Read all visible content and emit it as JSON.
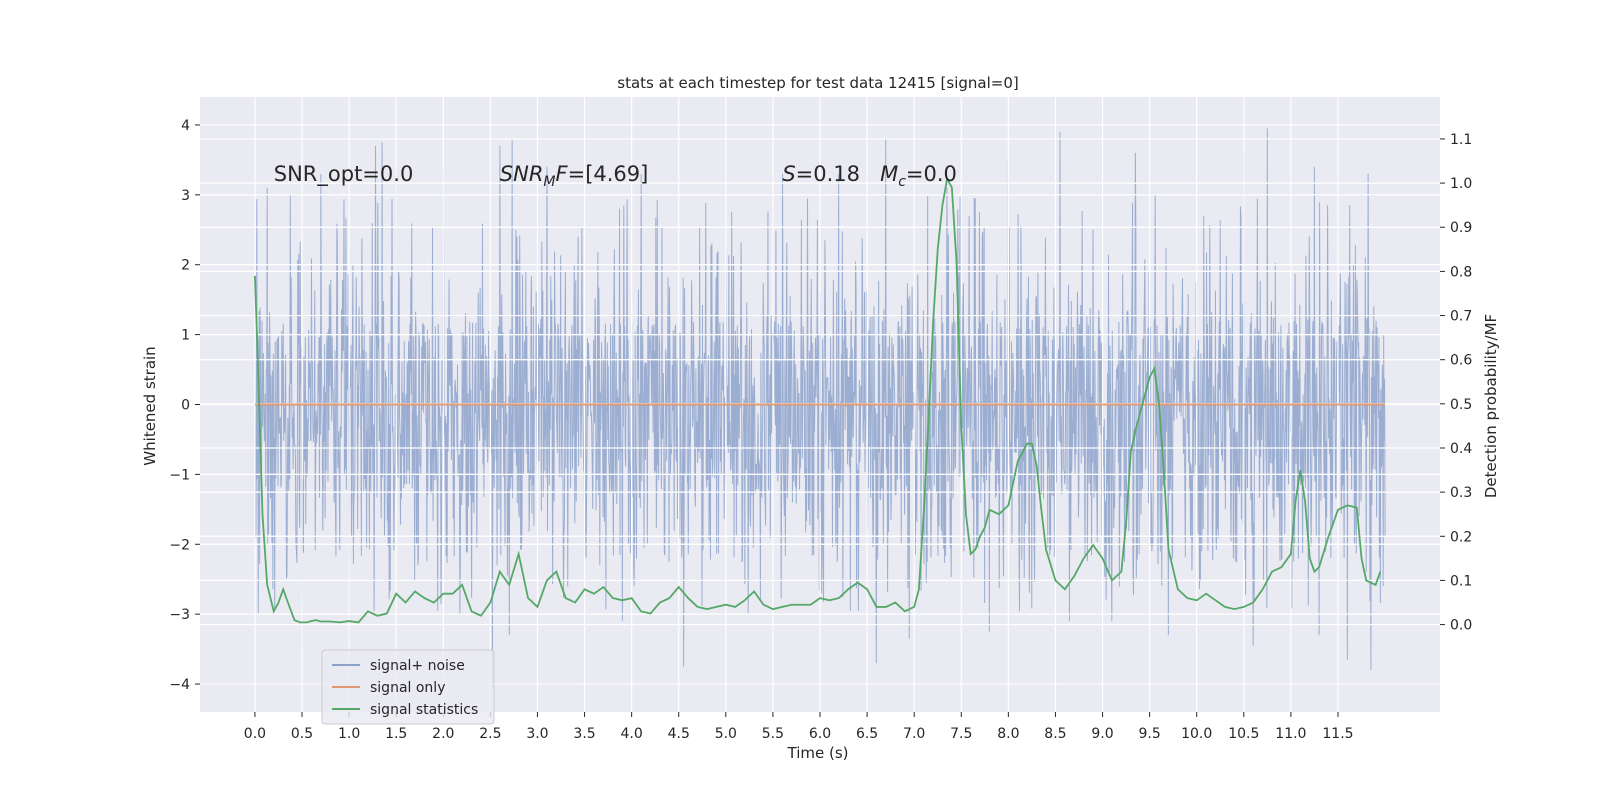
{
  "chart_data": {
    "type": "line",
    "title": "stats at each timestep for test data 12415 [signal=0]",
    "xlabel": "Time (s)",
    "ylabel_left": "Whitened strain",
    "ylabel_right": "Detection probability/MF",
    "xlim": [
      -0.5833,
      12.5833
    ],
    "ylim_left": [
      -4.4,
      4.4
    ],
    "ylim_right": [
      -0.198,
      1.195
    ],
    "x_ticks": [
      0.0,
      0.5,
      1.0,
      1.5,
      2.0,
      2.5,
      3.0,
      3.5,
      4.0,
      4.5,
      5.0,
      5.5,
      6.0,
      6.5,
      7.0,
      7.5,
      8.0,
      8.5,
      9.0,
      9.5,
      10.0,
      10.5,
      11.0,
      11.5
    ],
    "x_tick_labels": [
      "0.0",
      "0.5",
      "1.0",
      "1.5",
      "2.0",
      "2.5",
      "3.0",
      "3.5",
      "4.0",
      "4.5",
      "5.0",
      "5.5",
      "6.0",
      "6.5",
      "7.0",
      "7.5",
      "8.0",
      "8.5",
      "9.0",
      "9.5",
      "10.0",
      "10.5",
      "11.0",
      "11.5"
    ],
    "y_left_ticks": [
      -4,
      -3,
      -2,
      -1,
      0,
      1,
      2,
      3,
      4
    ],
    "y_left_tick_labels": [
      "−4",
      "−3",
      "−2",
      "−1",
      "0",
      "1",
      "2",
      "3",
      "4"
    ],
    "y_right_ticks": [
      0.0,
      0.1,
      0.2,
      0.3,
      0.4,
      0.5,
      0.6,
      0.7,
      0.8,
      0.9,
      1.0,
      1.1
    ],
    "y_right_tick_labels": [
      "0.0",
      "0.1",
      "0.2",
      "0.3",
      "0.4",
      "0.5",
      "0.6",
      "0.7",
      "0.8",
      "0.9",
      "1.0",
      "1.1"
    ],
    "grid": true,
    "legend": "lower-left",
    "colors": {
      "noise": "#4c72b0",
      "signal": "#dd8452",
      "stats": "#55a868",
      "axes_bg": "#eaeaf2",
      "grid": "#ffffff"
    },
    "annotations": [
      {
        "text": "SNR_opt=0.0",
        "x": 0.2,
        "y": 3.2
      },
      {
        "text": "SNR_MF=[4.69]",
        "x": 2.6,
        "y": 3.2
      },
      {
        "text": "S=0.18   M_c=0.0",
        "x": 5.6,
        "y": 3.2
      }
    ],
    "series": [
      {
        "name": "signal+ noise",
        "axis": "left",
        "style": "noise",
        "x_range": [
          0.0,
          12.0
        ],
        "envelope_typical": [
          -1.35,
          1.2
        ],
        "envelope_frequent": [
          -2.3,
          1.9
        ],
        "peaks_high": [
          [
            0.13,
            3.1
          ],
          [
            0.7,
            3.3
          ],
          [
            1.28,
            3.7
          ],
          [
            1.35,
            3.75
          ],
          [
            1.5,
            3.3
          ],
          [
            2.0,
            3.4
          ],
          [
            2.6,
            3.7
          ],
          [
            2.73,
            3.78
          ],
          [
            3.1,
            3.4
          ],
          [
            4.1,
            3.3
          ],
          [
            5.6,
            3.3
          ],
          [
            6.2,
            3.3
          ],
          [
            6.6,
            3.6
          ],
          [
            6.7,
            3.8
          ],
          [
            7.35,
            3.1
          ],
          [
            8.0,
            3.5
          ],
          [
            8.55,
            3.9
          ],
          [
            9.35,
            3.6
          ],
          [
            10.5,
            3.6
          ],
          [
            10.75,
            3.95
          ],
          [
            11.25,
            3.4
          ],
          [
            11.82,
            3.3
          ]
        ],
        "peaks_low": [
          [
            0.5,
            -3.5
          ],
          [
            1.0,
            -3.4
          ],
          [
            2.7,
            -3.3
          ],
          [
            3.9,
            -3.1
          ],
          [
            4.55,
            -3.75
          ],
          [
            6.6,
            -3.7
          ],
          [
            6.95,
            -3.35
          ],
          [
            7.8,
            -3.25
          ],
          [
            8.65,
            -3.1
          ],
          [
            9.1,
            -3.1
          ],
          [
            9.7,
            -3.3
          ],
          [
            10.6,
            -3.45
          ],
          [
            11.3,
            -3.3
          ],
          [
            11.6,
            -3.65
          ],
          [
            11.85,
            -3.8
          ],
          [
            11.98,
            -2.6
          ],
          [
            2.52,
            -4.05
          ]
        ]
      },
      {
        "name": "signal only",
        "axis": "left",
        "style": "signal",
        "x": [
          0.0,
          12.0
        ],
        "y": [
          0.0,
          0.0
        ]
      },
      {
        "name": "signal statistics",
        "axis": "right",
        "style": "stats",
        "x": [
          0.0,
          0.03,
          0.08,
          0.13,
          0.2,
          0.25,
          0.3,
          0.35,
          0.42,
          0.48,
          0.55,
          0.6,
          0.65,
          0.7,
          0.8,
          0.9,
          1.0,
          1.1,
          1.2,
          1.3,
          1.4,
          1.5,
          1.6,
          1.7,
          1.8,
          1.9,
          2.0,
          2.1,
          2.2,
          2.3,
          2.4,
          2.5,
          2.6,
          2.7,
          2.8,
          2.9,
          3.0,
          3.1,
          3.2,
          3.3,
          3.4,
          3.5,
          3.6,
          3.7,
          3.8,
          3.9,
          4.0,
          4.1,
          4.2,
          4.3,
          4.4,
          4.5,
          4.6,
          4.7,
          4.8,
          4.9,
          5.0,
          5.1,
          5.2,
          5.3,
          5.4,
          5.5,
          5.6,
          5.7,
          5.8,
          5.9,
          6.0,
          6.1,
          6.2,
          6.3,
          6.4,
          6.5,
          6.6,
          6.7,
          6.8,
          6.9,
          7.0,
          7.05,
          7.1,
          7.15,
          7.2,
          7.25,
          7.3,
          7.35,
          7.4,
          7.45,
          7.5,
          7.55,
          7.6,
          7.65,
          7.7,
          7.75,
          7.8,
          7.9,
          8.0,
          8.1,
          8.2,
          8.25,
          8.3,
          8.35,
          8.4,
          8.5,
          8.6,
          8.7,
          8.8,
          8.9,
          9.0,
          9.1,
          9.2,
          9.25,
          9.3,
          9.35,
          9.4,
          9.45,
          9.5,
          9.55,
          9.6,
          9.65,
          9.7,
          9.8,
          9.9,
          10.0,
          10.1,
          10.2,
          10.3,
          10.4,
          10.5,
          10.6,
          10.7,
          10.8,
          10.9,
          11.0,
          11.05,
          11.1,
          11.15,
          11.2,
          11.25,
          11.3,
          11.4,
          11.5,
          11.6,
          11.7,
          11.75,
          11.8,
          11.9,
          11.95
        ],
        "y": [
          0.79,
          0.6,
          0.25,
          0.09,
          0.03,
          0.05,
          0.08,
          0.05,
          0.01,
          0.005,
          0.005,
          0.008,
          0.01,
          0.007,
          0.007,
          0.005,
          0.008,
          0.005,
          0.03,
          0.02,
          0.025,
          0.07,
          0.05,
          0.075,
          0.06,
          0.05,
          0.07,
          0.07,
          0.09,
          0.03,
          0.02,
          0.05,
          0.12,
          0.09,
          0.16,
          0.06,
          0.04,
          0.1,
          0.12,
          0.06,
          0.05,
          0.08,
          0.07,
          0.085,
          0.06,
          0.055,
          0.06,
          0.03,
          0.025,
          0.05,
          0.06,
          0.085,
          0.06,
          0.04,
          0.035,
          0.04,
          0.045,
          0.04,
          0.055,
          0.075,
          0.045,
          0.035,
          0.04,
          0.045,
          0.045,
          0.045,
          0.06,
          0.055,
          0.06,
          0.08,
          0.095,
          0.08,
          0.04,
          0.04,
          0.05,
          0.03,
          0.04,
          0.08,
          0.25,
          0.45,
          0.68,
          0.85,
          0.95,
          1.01,
          0.99,
          0.82,
          0.45,
          0.25,
          0.16,
          0.17,
          0.2,
          0.22,
          0.26,
          0.25,
          0.27,
          0.37,
          0.41,
          0.41,
          0.36,
          0.26,
          0.17,
          0.1,
          0.08,
          0.11,
          0.15,
          0.18,
          0.15,
          0.1,
          0.12,
          0.23,
          0.39,
          0.44,
          0.48,
          0.52,
          0.56,
          0.58,
          0.5,
          0.35,
          0.17,
          0.08,
          0.06,
          0.055,
          0.07,
          0.055,
          0.04,
          0.035,
          0.04,
          0.05,
          0.08,
          0.12,
          0.13,
          0.16,
          0.28,
          0.35,
          0.28,
          0.15,
          0.12,
          0.13,
          0.2,
          0.26,
          0.27,
          0.265,
          0.15,
          0.1,
          0.09,
          0.12
        ]
      }
    ]
  }
}
